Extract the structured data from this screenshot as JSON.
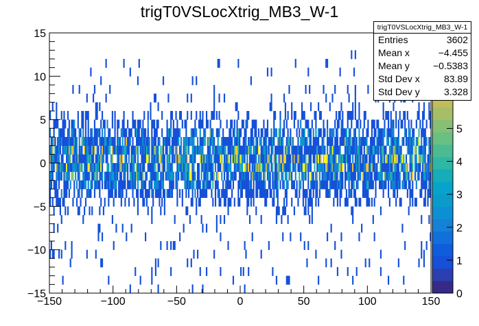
{
  "chart_data": {
    "type": "heatmap",
    "title": "trigT0VSLocXtrig_MB3_W-1",
    "xlabel": "",
    "ylabel": "",
    "xlim": [
      -150,
      150
    ],
    "ylim": [
      -15,
      15
    ],
    "zlim": [
      0,
      7.9
    ],
    "x_bin_width": 1,
    "y_bin_width": 1,
    "x_ticks": [
      -150,
      -100,
      -50,
      0,
      50,
      100,
      150
    ],
    "x_tick_labels": [
      "−150",
      "−100",
      "−50",
      "0",
      "50",
      "100",
      "150"
    ],
    "y_ticks": [
      -15,
      -10,
      -5,
      0,
      5,
      10,
      15
    ],
    "y_tick_labels": [
      "−15",
      "−10",
      "−5",
      "0",
      "5",
      "10",
      "15"
    ],
    "z_ticks": [
      0,
      1,
      2,
      3,
      4,
      5
    ],
    "z_tick_labels": [
      "0",
      "1",
      "2",
      "3",
      "4",
      "5"
    ],
    "palette": [
      "#352a87",
      "#2c3fb0",
      "#1450d8",
      "#0f5cdd",
      "#1170d9",
      "#1481d6",
      "#0d8fd3",
      "#0a9bcb",
      "#06a4ca",
      "#16acb8",
      "#2eb7a4",
      "#4cbb92",
      "#6abf83",
      "#87bf77",
      "#a6be67",
      "#c2bc5c",
      "#d1bb59",
      "#e6bd47",
      "#fec832",
      "#f5e01f",
      "#f9fb0e"
    ],
    "row_profile_note": "fraction of filled x-bins and mean count per y-bin row (y from -15 to 14)",
    "row_y": [
      -15,
      -14,
      -13,
      -12,
      -11,
      -10,
      -9,
      -8,
      -7,
      -6,
      -5,
      -4,
      -3,
      -2,
      -1,
      0,
      1,
      2,
      3,
      4,
      5,
      6,
      7,
      8,
      9,
      10,
      11,
      12,
      13,
      14
    ],
    "row_fill": [
      0.02,
      0.03,
      0.04,
      0.04,
      0.05,
      0.04,
      0.06,
      0.06,
      0.08,
      0.12,
      0.3,
      0.5,
      0.7,
      0.8,
      0.85,
      0.85,
      0.82,
      0.75,
      0.6,
      0.42,
      0.25,
      0.1,
      0.06,
      0.04,
      0.03,
      0.02,
      0.01,
      0.01,
      0.0,
      0.005
    ],
    "row_mean": [
      1,
      1,
      1,
      1,
      1,
      1,
      1,
      1,
      1,
      1,
      1.1,
      1.3,
      1.8,
      2.4,
      2.9,
      3.1,
      2.6,
      2.2,
      1.7,
      1.3,
      1.1,
      1,
      1,
      1,
      1,
      1,
      1,
      1,
      1,
      1
    ],
    "stats": {
      "title": "trigT0VSLocXtrig_MB3_W-1",
      "rows": [
        {
          "label": "Entries",
          "value": "3602"
        },
        {
          "label": "Mean x",
          "value": "−4.455"
        },
        {
          "label": "Mean y",
          "value": "−0.5383"
        },
        {
          "label": "Std Dev x",
          "value": "83.89"
        },
        {
          "label": "Std Dev y",
          "value": "3.328"
        }
      ]
    }
  }
}
